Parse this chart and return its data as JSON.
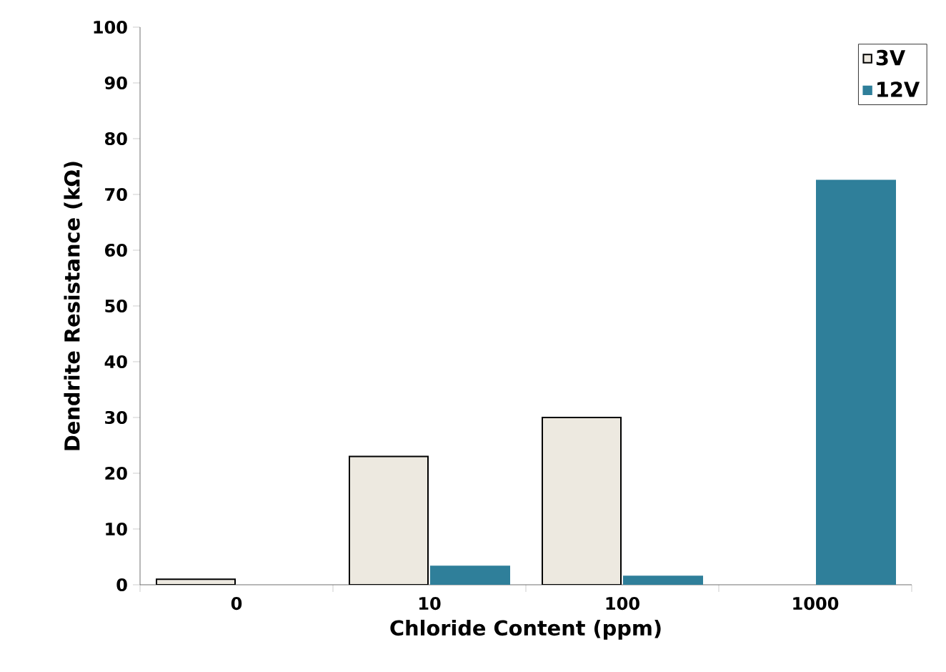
{
  "chart_data": {
    "type": "bar",
    "xlabel": "Chloride Content (ppm)",
    "ylabel": "Dendrite Resistance (kΩ)",
    "categories": [
      "0",
      "10",
      "100",
      "1000"
    ],
    "series": [
      {
        "name": "3V",
        "color": "#ede9e0",
        "values": [
          1,
          23,
          30,
          null
        ]
      },
      {
        "name": "12V",
        "color": "#2f7f9a",
        "values": [
          null,
          3.3,
          1.5,
          72.5
        ]
      }
    ],
    "ylim": [
      0,
      100
    ],
    "yticks": [
      0,
      10,
      20,
      30,
      40,
      50,
      60,
      70,
      80,
      90,
      100
    ],
    "grid": false,
    "legend": "top right"
  }
}
